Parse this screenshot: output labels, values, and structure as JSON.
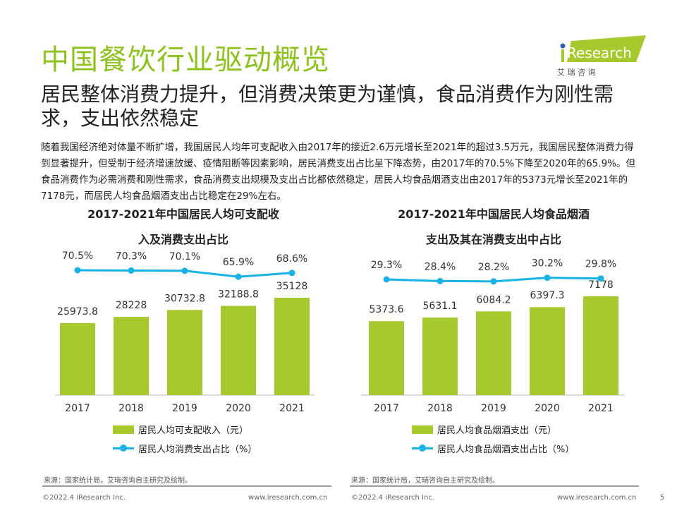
{
  "header": {
    "title": "中国餐饮行业驱动概览",
    "subtitle": "居民整体消费力提升，但消费决策更为谨慎，食品消费作为刚性需求，支出依然稳定",
    "logo_text": "iResearch",
    "logo_cn": "艾 瑞 咨 询"
  },
  "intro": "随着我国经济绝对体量不断扩增，我国居民人均年可支配收入由2017年的接近2.6万元增长至2021年的超过3.5万元，我国居民整体消费力得到显著提升，但受制于经济增速放缓、疫情阻断等因素影响，居民消费支出占比呈下降态势，由2017年的70.5%下降至2020年的65.9%。但食品消费作为必需消费和刚性需求，食品消费支出规模及支出占比都依然稳定，居民人均食品烟酒支出由2017年的5373元增长至2021年的7178元，而居民人均食品烟酒支出占比稳定在29%左右。",
  "colors": {
    "title": "#8dc21f",
    "bar": "#a6ca2e",
    "line": "#19b2e6"
  },
  "chart_data": [
    {
      "type": "bar+line",
      "title": "2017-2021年中国居民人均可支配收入及消费支出占比",
      "title_lines": [
        "2017-2021年中国居民人均可支配收",
        "入及消费支出占比"
      ],
      "categories": [
        "2017",
        "2018",
        "2019",
        "2020",
        "2021"
      ],
      "series": [
        {
          "name": "居民人均可支配收入（元）",
          "type": "bar",
          "values": [
            25973.8,
            28228,
            30732.8,
            32188.8,
            35128
          ],
          "labels": [
            "25973.8",
            "28228",
            "30732.8",
            "32188.8",
            "35128"
          ]
        },
        {
          "name": "居民人均消费支出占比（%）",
          "type": "line",
          "values": [
            70.5,
            70.3,
            70.1,
            65.9,
            68.6
          ],
          "labels": [
            "70.5%",
            "70.3%",
            "70.1%",
            "65.9%",
            "68.6%"
          ]
        }
      ],
      "legend": "bottom",
      "grid": false
    },
    {
      "type": "bar+line",
      "title": "2017-2021年中国居民人均食品烟酒支出及其在消费支出中占比",
      "title_lines": [
        "2017-2021年中国居民人均食品烟酒",
        "支出及其在消费支出中占比"
      ],
      "categories": [
        "2017",
        "2018",
        "2019",
        "2020",
        "2021"
      ],
      "series": [
        {
          "name": "居民人均食品烟酒支出（元）",
          "type": "bar",
          "values": [
            5373.6,
            5631.1,
            6084.2,
            6397.3,
            7178
          ],
          "labels": [
            "5373.6",
            "5631.1",
            "6084.2",
            "6397.3",
            "7178"
          ]
        },
        {
          "name": "居民人均食品烟酒支出占比（%）",
          "type": "line",
          "values": [
            29.3,
            28.4,
            28.2,
            30.2,
            29.8
          ],
          "labels": [
            "29.3%",
            "28.4%",
            "28.2%",
            "30.2%",
            "29.8%"
          ]
        }
      ],
      "legend": "bottom",
      "grid": false
    }
  ],
  "sources": [
    "来源：国家统计局，艾瑞咨询自主研究及绘制。",
    "来源：国家统计局，艾瑞咨询自主研究及绘制。"
  ],
  "footer": {
    "copyright": "©2022.4 iResearch Inc.",
    "url": "www.iresearch.com.cn",
    "page": "5"
  }
}
